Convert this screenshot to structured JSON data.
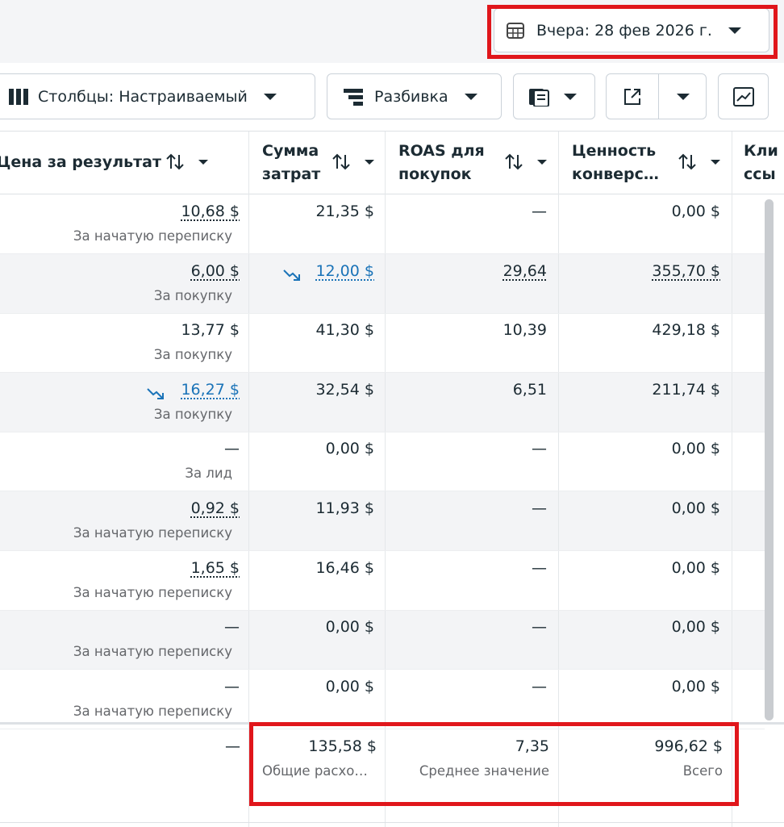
{
  "date_button": "Вчера: 28 фев 2026 г.",
  "toolbar": {
    "columns": "Столбцы: Настраиваемый",
    "breakdown": "Разбивка"
  },
  "table": {
    "headers": [
      "Цена за результат",
      "Сумма затрат",
      "ROAS для покупок",
      "Ценность конверс…",
      "Кли ссы"
    ],
    "rows": [
      {
        "cost": "10,68 $",
        "cost_sub": "За начатую переписку",
        "cost_underline": true,
        "spend": "21,35 $",
        "roas": "—",
        "value": "0,00 $"
      },
      {
        "cost": "6,00 $",
        "cost_sub": "За покупку",
        "cost_underline": true,
        "spend": "12,00 $",
        "spend_trend": true,
        "roas": "29,64",
        "roas_underline": true,
        "value": "355,70 $",
        "value_underline": true
      },
      {
        "cost": "13,77 $",
        "cost_sub": "За покупку",
        "spend": "41,30 $",
        "roas": "10,39",
        "value": "429,18 $"
      },
      {
        "cost": "16,27 $",
        "cost_sub": "За покупку",
        "cost_trend": true,
        "spend": "32,54 $",
        "roas": "6,51",
        "value": "211,74 $"
      },
      {
        "cost": "—",
        "cost_sub": "За лид",
        "spend": "0,00 $",
        "roas": "—",
        "value": "0,00 $"
      },
      {
        "cost": "0,92 $",
        "cost_sub": "За начатую переписку",
        "cost_underline": true,
        "spend": "11,93 $",
        "roas": "—",
        "value": "0,00 $"
      },
      {
        "cost": "1,65 $",
        "cost_sub": "За начатую переписку",
        "cost_underline": true,
        "spend": "16,46 $",
        "roas": "—",
        "value": "0,00 $"
      },
      {
        "cost": "—",
        "cost_sub": "За начатую переписку",
        "spend": "0,00 $",
        "roas": "—",
        "value": "0,00 $"
      },
      {
        "cost": "—",
        "cost_sub": "За начатую переписку",
        "spend": "0,00 $",
        "roas": "—",
        "value": "0,00 $"
      }
    ],
    "totals": {
      "cost": "—",
      "spend": "135,58 $",
      "spend_sub": "Общие расхо…",
      "roas": "7,35",
      "roas_sub": "Среднее значение",
      "value": "996,62 $",
      "value_sub": "Всего"
    }
  }
}
